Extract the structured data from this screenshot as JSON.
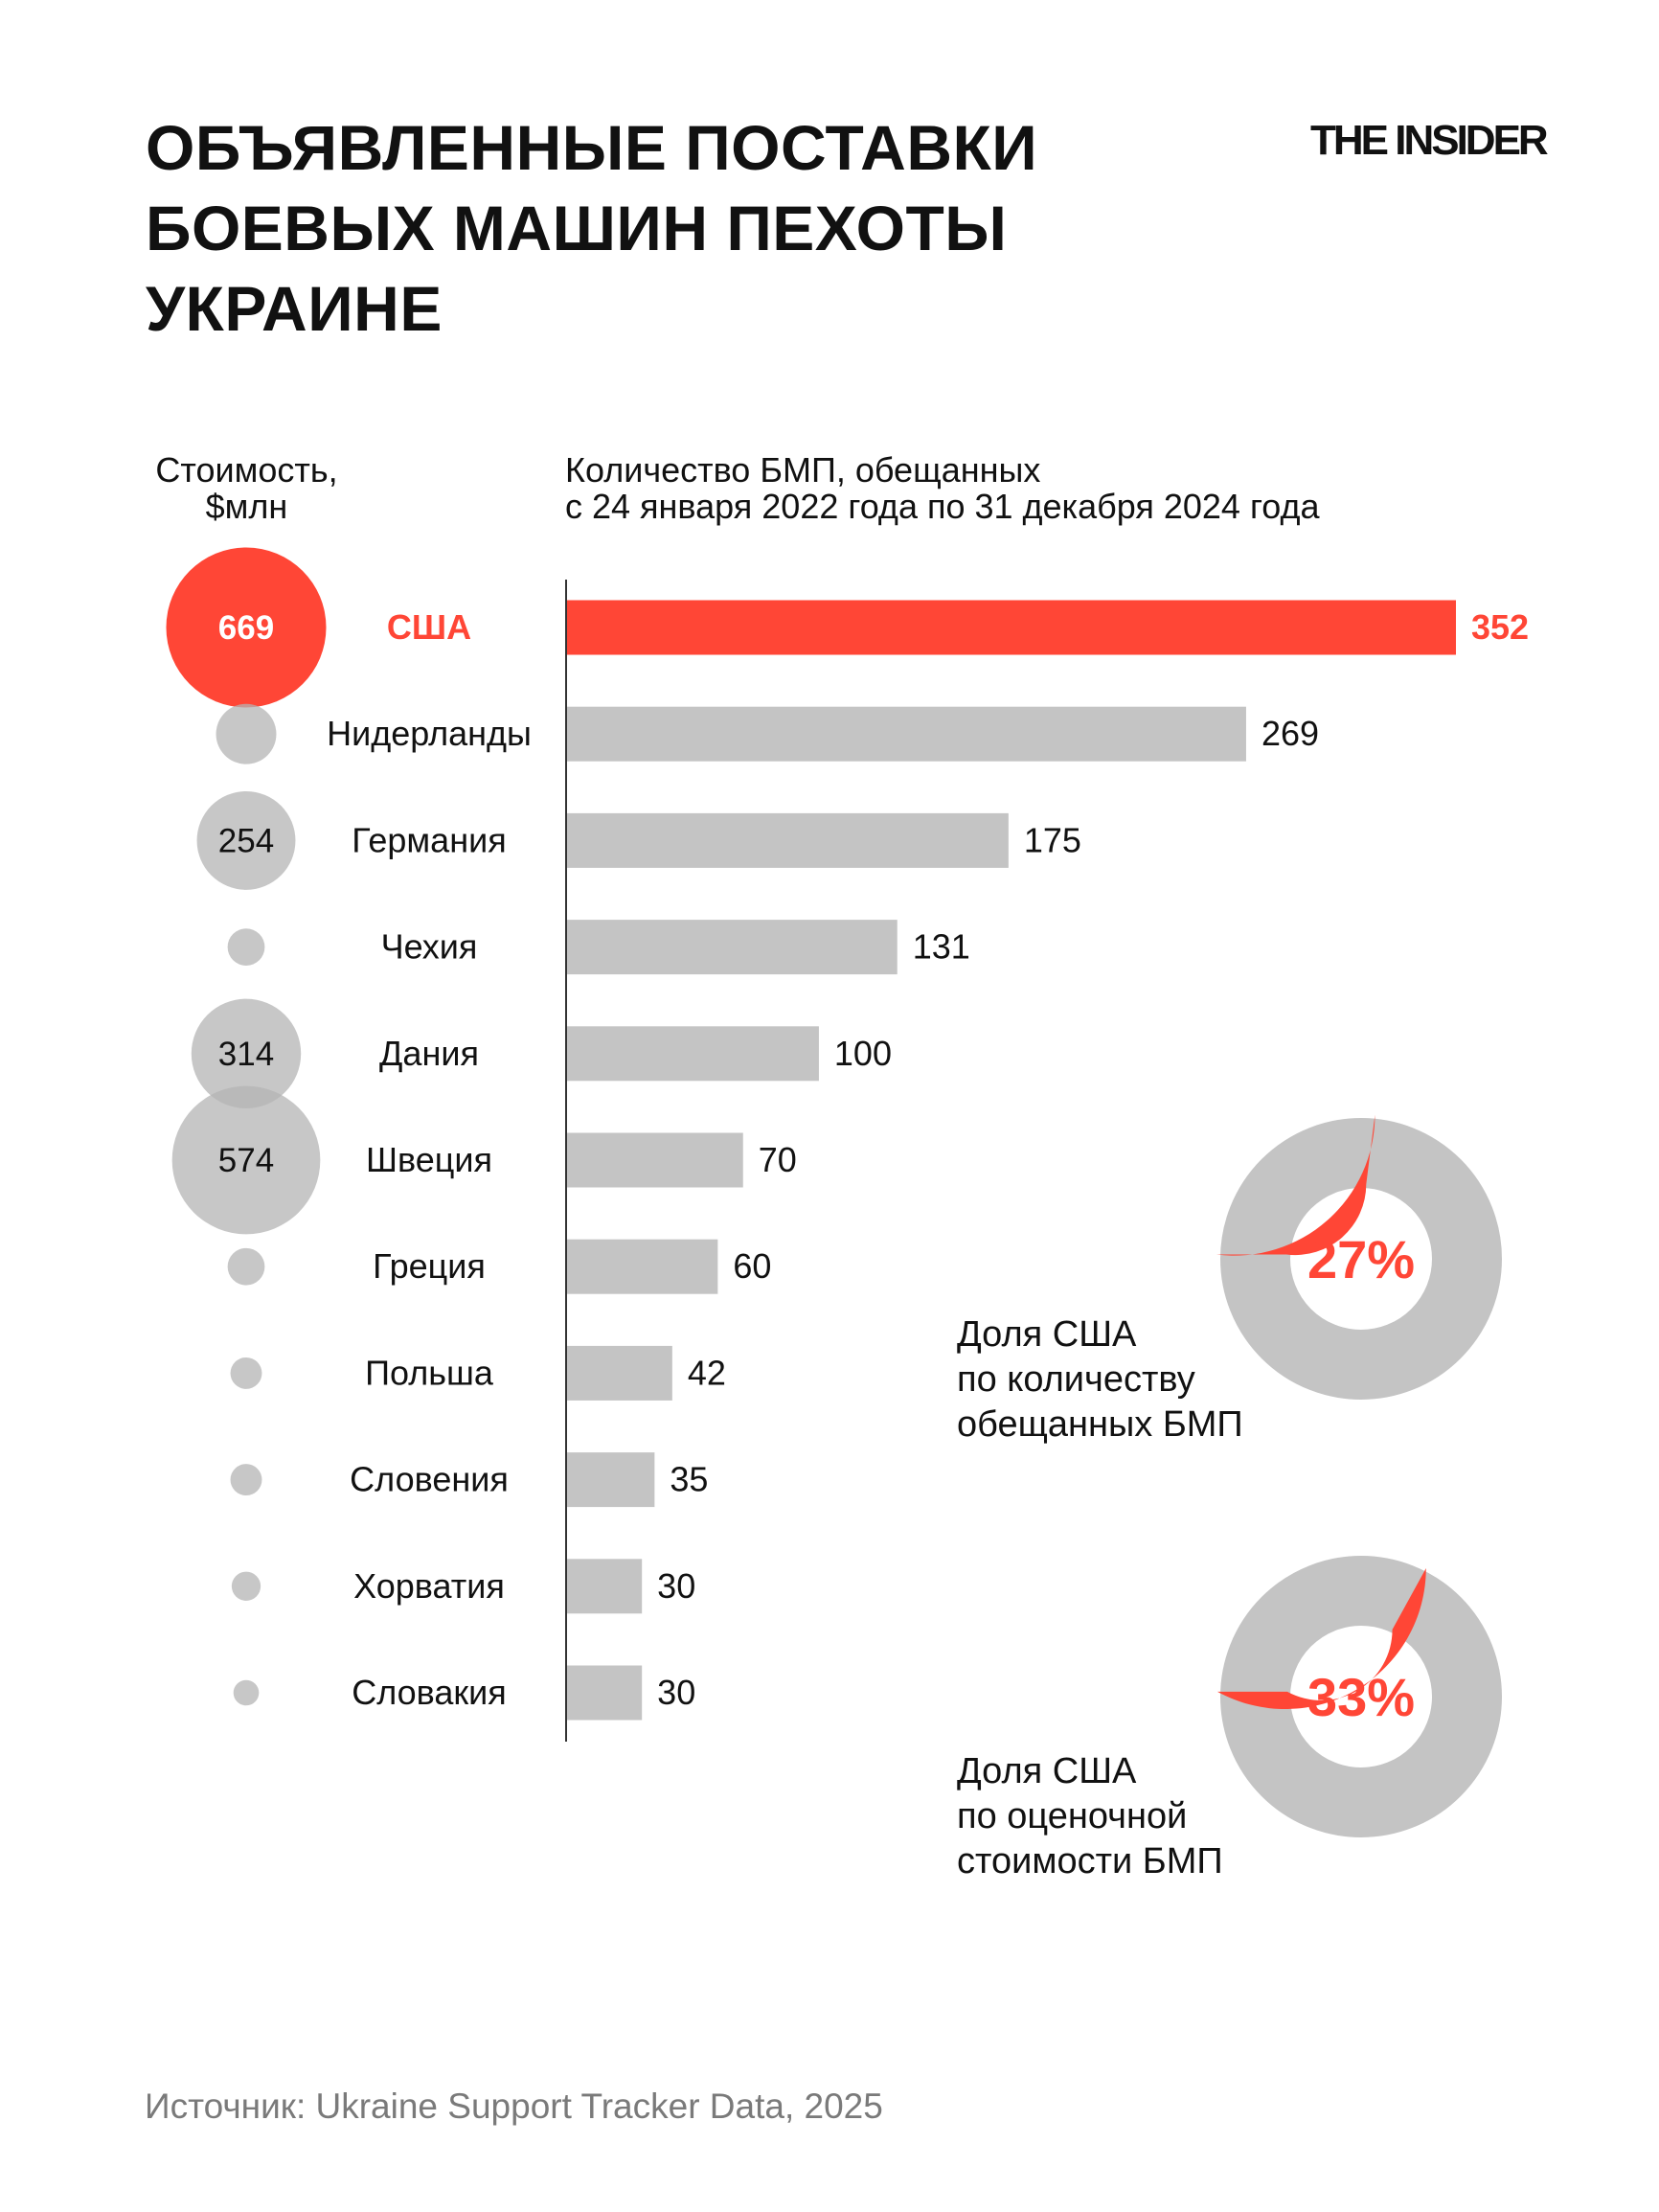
{
  "title_lines": [
    "ОБЪЯВЛЕННЫЕ ПОСТАВКИ",
    "БОЕВЫХ МАШИН ПЕХОТЫ",
    "УКРАИНЕ"
  ],
  "logo": "THE INSIDER",
  "colors": {
    "accent": "#ff4636",
    "bar": "#c4c4c4",
    "bubble": "#b4b4b4",
    "source_text": "#7a7a7a"
  },
  "chart_data": [
    {
      "type": "bar",
      "orientation": "horizontal",
      "title": "Количество БМП, обещанных с 24 января 2022 года по 31 декабря 2024 года",
      "title_lines": [
        "Количество БМП, обещанных",
        "с 24 января 2022 года по 31 декабря 2024 года"
      ],
      "categories": [
        "США",
        "Нидерланды",
        "Германия",
        "Чехия",
        "Дания",
        "Швеция",
        "Греция",
        "Польша",
        "Словения",
        "Хорватия",
        "Словакия"
      ],
      "values": [
        352,
        269,
        175,
        131,
        100,
        70,
        60,
        42,
        35,
        30,
        30
      ],
      "highlight": "США",
      "xlim": [
        0,
        352
      ],
      "grid": false
    },
    {
      "type": "bubble",
      "title_lines": [
        "Стоимость,",
        "$млн"
      ],
      "categories": [
        "США",
        "Нидерланды",
        "Германия",
        "Чехия",
        "Дания",
        "Швеция",
        "Греция",
        "Польша",
        "Словения",
        "Хорватия",
        "Словакия"
      ],
      "values": [
        669,
        95,
        254,
        36,
        314,
        574,
        36,
        26,
        26,
        22,
        17
      ],
      "labels": [
        "669",
        "",
        "254",
        "",
        "314",
        "574",
        "",
        "",
        "",
        "",
        ""
      ],
      "highlight": "США"
    },
    {
      "type": "pie",
      "variant": "donut",
      "value_percent": 27,
      "center_label": "27%",
      "label_lines": [
        "Доля США",
        "по количеству",
        "обещанных БМП"
      ]
    },
    {
      "type": "pie",
      "variant": "donut",
      "value_percent": 33,
      "center_label": "33%",
      "label_lines": [
        "Доля США",
        "по оценочной",
        "стоимости БМП"
      ]
    }
  ],
  "source": "Источник: Ukraine Support Tracker Data, 2025"
}
